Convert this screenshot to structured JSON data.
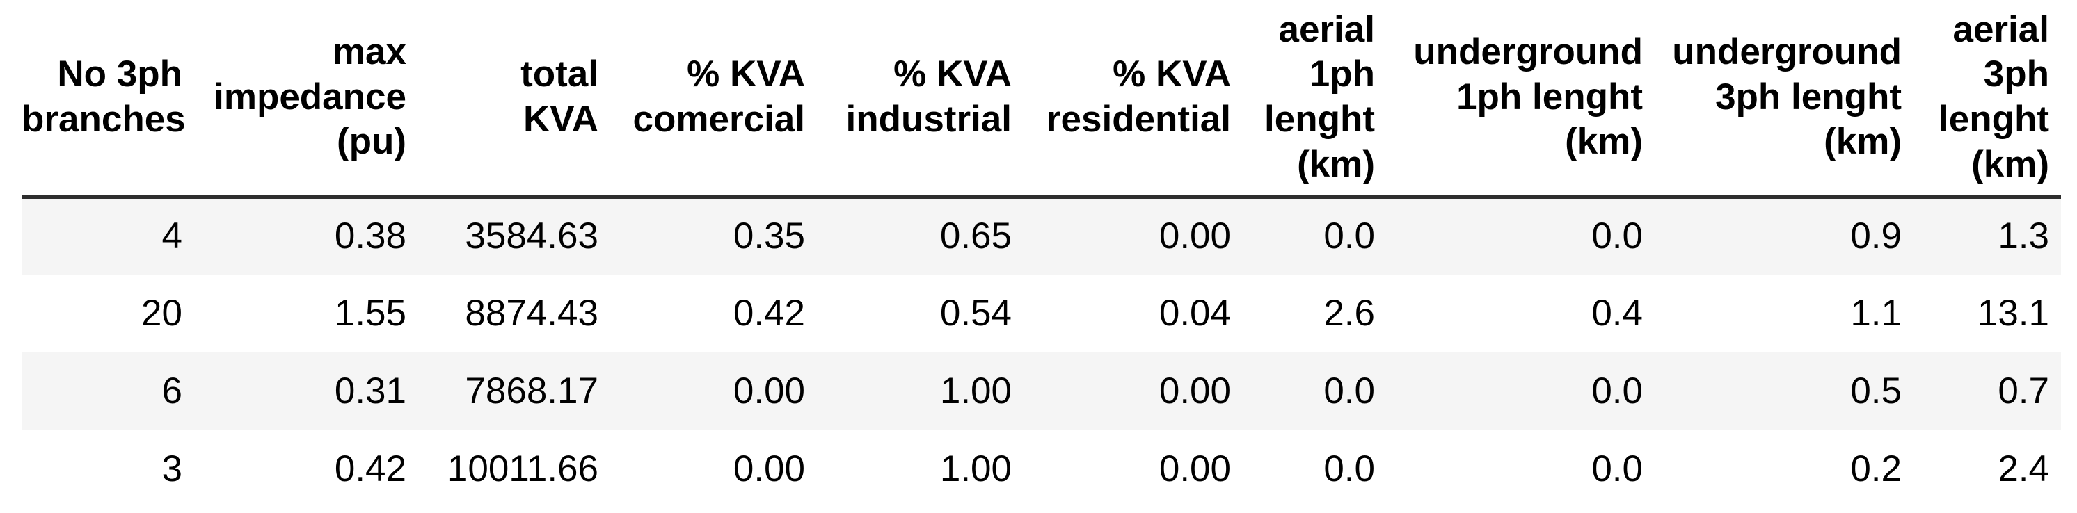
{
  "chart_data": {
    "type": "table",
    "columns": [
      {
        "label": "No 3ph\nbranches"
      },
      {
        "label": "max\nimpedance\n(pu)"
      },
      {
        "label": "total\nKVA"
      },
      {
        "label": "% KVA\ncomercial"
      },
      {
        "label": "% KVA\nindustrial"
      },
      {
        "label": "% KVA\nresidential"
      },
      {
        "label": "aerial\n1ph\nlenght\n(km)"
      },
      {
        "label": "underground\n1ph lenght\n(km)"
      },
      {
        "label": "underground\n3ph lenght\n(km)"
      },
      {
        "label": "aerial\n3ph\nlenght\n(km)"
      }
    ],
    "rows": [
      [
        "4",
        "0.38",
        "3584.63",
        "0.35",
        "0.65",
        "0.00",
        "0.0",
        "0.0",
        "0.9",
        "1.3"
      ],
      [
        "20",
        "1.55",
        "8874.43",
        "0.42",
        "0.54",
        "0.04",
        "2.6",
        "0.4",
        "1.1",
        "13.1"
      ],
      [
        "6",
        "0.31",
        "7868.17",
        "0.00",
        "1.00",
        "0.00",
        "0.0",
        "0.0",
        "0.5",
        "0.7"
      ],
      [
        "3",
        "0.42",
        "10011.66",
        "0.00",
        "1.00",
        "0.00",
        "0.0",
        "0.0",
        "0.2",
        "2.4"
      ]
    ]
  },
  "colors": {
    "stripe": "#f5f5f5",
    "header_rule": "#2e2e2e",
    "text": "#000000",
    "background": "#ffffff"
  }
}
